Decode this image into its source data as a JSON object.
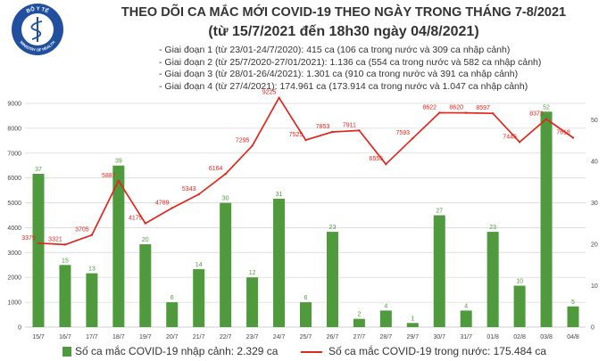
{
  "logo": {
    "text_top": "BỘ Y TẾ",
    "text_bottom": "MINISTRY OF HEALTH"
  },
  "colors": {
    "title": "#333333",
    "bar": "#4f9a3c",
    "line": "#e0261d",
    "grid": "#d9d9d9",
    "axis": "#bfbfbf",
    "tick_text": "#444444",
    "logo": "#1f4f9e"
  },
  "chart_data": {
    "type": "bar",
    "title": "THEO DÕI CA MẮC MỚI COVID-19 THEO NGÀY TRONG THÁNG 7-8/2021",
    "subtitle": "(từ 15/7/2021 đến 18h30 ngày 04/8/2021)",
    "annotations": [
      "- Giai đoạn 1 (từ 23/01-24/7/2020): 415 ca (106 ca trong nước và 309 ca nhập cảnh)",
      "- Giai đoạn 2 (từ 25/7/2020-27/01/2021): 1.136 ca (554 ca trong nước và 582 ca nhập cảnh)",
      "- Giai đoạn 3 (từ 28/01-26/4/2021): 1.301 ca (910 ca trong nước và 391 ca nhập cảnh)",
      "- Giai đoạn 4 (từ 27/4/2021): 174.961 ca (173.914 ca trong nước và 1.047 ca nhập cảnh)"
    ],
    "categories": [
      "15/7",
      "16/7",
      "17/7",
      "18/7",
      "19/7",
      "20/7",
      "21/7",
      "22/7",
      "23/7",
      "24/7",
      "25/7",
      "26/7",
      "27/7",
      "28/7",
      "29/7",
      "30/7",
      "31/7",
      "01/8",
      "02/8",
      "03/8",
      "04/8"
    ],
    "series": [
      {
        "name": "Số ca mắc COVID-19 nhập cảnh: 2.329 ca",
        "type": "bar",
        "axis": "right",
        "values": [
          37,
          15,
          13,
          39,
          20,
          6,
          14,
          30,
          12,
          31,
          6,
          23,
          2,
          4,
          1,
          27,
          4,
          23,
          10,
          52,
          5
        ]
      },
      {
        "name": "Số ca mắc COVID-19 trong nước: 175.484 ca",
        "type": "line",
        "axis": "left",
        "values": [
          3379,
          3321,
          3705,
          5887,
          4175,
          4789,
          5343,
          6164,
          7295,
          9225,
          7525,
          7853,
          7911,
          6555,
          7593,
          8622,
          8620,
          8597,
          7445,
          8372,
          7618
        ]
      }
    ],
    "y_left": {
      "range": [
        0,
        9000
      ],
      "ticks": [
        0,
        1000,
        2000,
        3000,
        4000,
        5000,
        6000,
        7000,
        8000,
        9000
      ]
    },
    "y_right": {
      "range": [
        0,
        54
      ],
      "ticks": [
        0,
        10,
        20,
        30,
        40,
        50
      ]
    },
    "grid": true,
    "data_labels": true,
    "legend": "bottom"
  }
}
